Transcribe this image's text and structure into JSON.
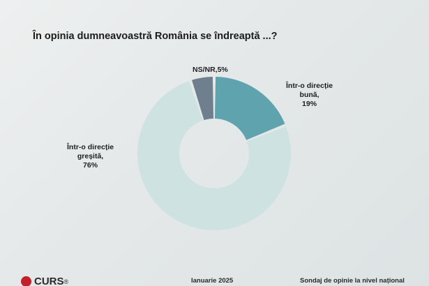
{
  "chart_data": {
    "type": "pie",
    "title": "În opinia dumneavoastră România se îndreaptă ...?",
    "series": [
      {
        "label_lines": [
          "NS/NR,5%"
        ],
        "value": 5,
        "color": "#6f7f8e"
      },
      {
        "label_lines": [
          "Într-o direcție",
          "bună,",
          "19%"
        ],
        "value": 19,
        "color": "#5fa3ae"
      },
      {
        "label_lines": [
          "Într-o direcție",
          "greșită,",
          "76%"
        ],
        "value": 76,
        "color": "#cfe2e2"
      }
    ]
  },
  "footer": {
    "brand": "CURS",
    "brand_mark": "®",
    "date": "Ianuarie 2025",
    "source": "Sondaj de opinie la nivel național"
  }
}
